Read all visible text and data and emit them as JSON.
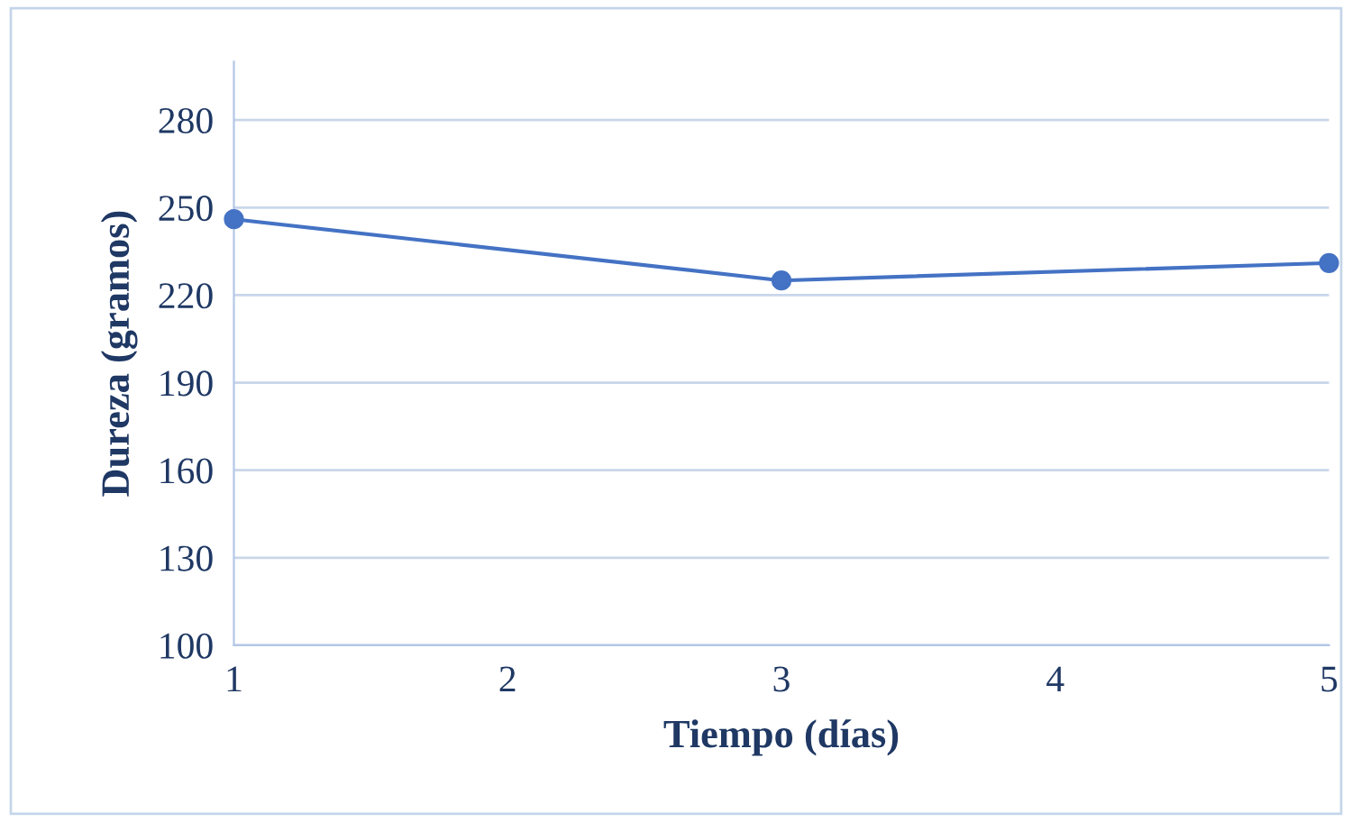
{
  "chart_data": {
    "type": "line",
    "xlabel": "Tiempo (días)",
    "ylabel": "Dureza (gramos)",
    "x": [
      1,
      3,
      5
    ],
    "series": [
      {
        "color": "#4472c4",
        "values": [
          246,
          225,
          231
        ]
      }
    ],
    "xlim": [
      1,
      5
    ],
    "xticks": [
      1,
      2,
      3,
      4,
      5
    ],
    "ylim": [
      100,
      300
    ],
    "yticks": [
      100,
      130,
      160,
      190,
      220,
      250,
      280
    ],
    "grid": "y",
    "marker": "circle",
    "line_style": "solid"
  }
}
